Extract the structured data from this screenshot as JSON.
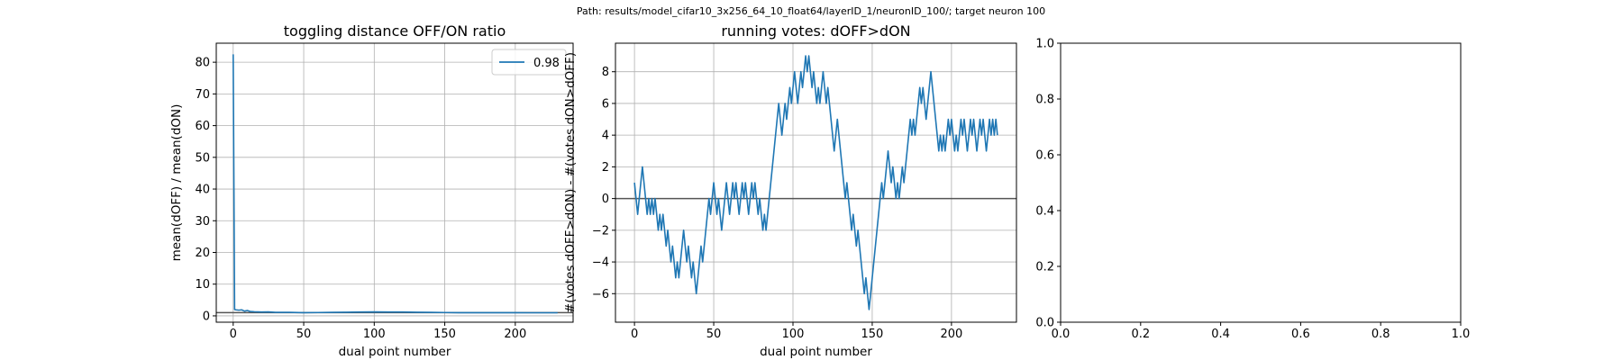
{
  "suptitle": "Path: results/model_cifar10_3x256_64_10_float64/layerID_1/neuronID_100/; target neuron 100",
  "chart_data": [
    {
      "type": "line",
      "title": "toggling distance OFF/ON ratio",
      "xlabel": "dual point number",
      "ylabel": "mean(dOFF) / mean(dON)",
      "xlim": [
        -12,
        241
      ],
      "ylim": [
        -2,
        86
      ],
      "xticks": [
        0,
        50,
        100,
        150,
        200
      ],
      "yticks": [
        0,
        10,
        20,
        30,
        40,
        50,
        60,
        70,
        80
      ],
      "grid": true,
      "legend": {
        "position": "top-right",
        "entries": [
          "0.98"
        ]
      },
      "reference_line_y": 1,
      "series": [
        {
          "name": "0.98",
          "color": "#1f77b4",
          "x": [
            0,
            1,
            2,
            4,
            6,
            8,
            10,
            12,
            15,
            20,
            25,
            30,
            40,
            50,
            60,
            70,
            80,
            90,
            100,
            110,
            120,
            130,
            140,
            150,
            160,
            170,
            180,
            190,
            200,
            210,
            220,
            230
          ],
          "y": [
            82.5,
            2.0,
            1.9,
            1.8,
            1.9,
            1.5,
            1.7,
            1.4,
            1.3,
            1.2,
            1.25,
            1.1,
            1.1,
            1.0,
            1.05,
            1.1,
            1.15,
            1.2,
            1.25,
            1.2,
            1.2,
            1.15,
            1.1,
            1.05,
            1.0,
            1.0,
            1.0,
            1.0,
            1.0,
            0.98,
            0.98,
            0.98
          ]
        }
      ]
    },
    {
      "type": "line",
      "title": "running votes: dOFF>dON",
      "xlabel": "dual point number",
      "ylabel": "#(votes dOFF>dON) - #(votes dON>dOFF)",
      "xlim": [
        -12,
        241
      ],
      "ylim": [
        -7.8,
        9.8
      ],
      "xticks": [
        0,
        50,
        100,
        150,
        200
      ],
      "yticks": [
        -6,
        -4,
        -2,
        0,
        2,
        4,
        6,
        8
      ],
      "grid": true,
      "reference_line_y": 0,
      "series": [
        {
          "color": "#1f77b4",
          "y": [
            1,
            0,
            -1,
            0,
            1,
            2,
            1,
            0,
            -1,
            0,
            -1,
            0,
            -1,
            0,
            -1,
            -2,
            -1,
            -2,
            -1,
            -2,
            -3,
            -2,
            -3,
            -4,
            -3,
            -4,
            -5,
            -4,
            -5,
            -4,
            -3,
            -2,
            -3,
            -4,
            -3,
            -4,
            -5,
            -4,
            -5,
            -6,
            -5,
            -4,
            -3,
            -4,
            -3,
            -2,
            -1,
            0,
            -1,
            0,
            1,
            0,
            -1,
            0,
            -1,
            -2,
            -1,
            0,
            1,
            0,
            -1,
            0,
            1,
            0,
            1,
            0,
            -1,
            0,
            1,
            0,
            1,
            0,
            -1,
            0,
            1,
            0,
            1,
            0,
            -1,
            0,
            -1,
            -2,
            -1,
            -2,
            -1,
            0,
            1,
            2,
            3,
            4,
            5,
            6,
            5,
            4,
            5,
            6,
            5,
            6,
            7,
            6,
            7,
            8,
            7,
            6,
            7,
            8,
            7,
            8,
            9,
            8,
            9,
            8,
            7,
            8,
            7,
            6,
            7,
            6,
            7,
            8,
            7,
            6,
            7,
            6,
            5,
            4,
            3,
            4,
            5,
            4,
            3,
            2,
            1,
            0,
            1,
            0,
            -1,
            -2,
            -1,
            -2,
            -3,
            -2,
            -3,
            -4,
            -5,
            -6,
            -5,
            -6,
            -7,
            -6,
            -5,
            -4,
            -3,
            -2,
            -1,
            0,
            1,
            0,
            1,
            2,
            3,
            2,
            1,
            2,
            1,
            0,
            1,
            0,
            1,
            2,
            1,
            2,
            3,
            4,
            5,
            4,
            5,
            4,
            5,
            6,
            7,
            6,
            7,
            6,
            5,
            6,
            7,
            8,
            7,
            6,
            5,
            4,
            3,
            4,
            3,
            4,
            3,
            4,
            5,
            4,
            5,
            4,
            3,
            4,
            3,
            4,
            5,
            4,
            5,
            4,
            3,
            4,
            5,
            4,
            5,
            4,
            3,
            4,
            5,
            4,
            5,
            4,
            3,
            4,
            5,
            4,
            5,
            4,
            5,
            4
          ]
        }
      ]
    },
    {
      "type": "line",
      "title": "",
      "xlabel": "",
      "ylabel": "",
      "xlim": [
        0,
        1
      ],
      "ylim": [
        0,
        1
      ],
      "xticks": [
        0,
        0.2,
        0.4,
        0.6,
        0.8,
        1
      ],
      "yticks": [
        0,
        0.2,
        0.4,
        0.6,
        0.8,
        1
      ],
      "xticklabels": [
        "0.0",
        "0.2",
        "0.4",
        "0.6",
        "0.8",
        "1.0"
      ],
      "yticklabels": [
        "0.0",
        "0.2",
        "0.4",
        "0.6",
        "0.8",
        "1.0"
      ],
      "grid": false,
      "series": []
    }
  ]
}
